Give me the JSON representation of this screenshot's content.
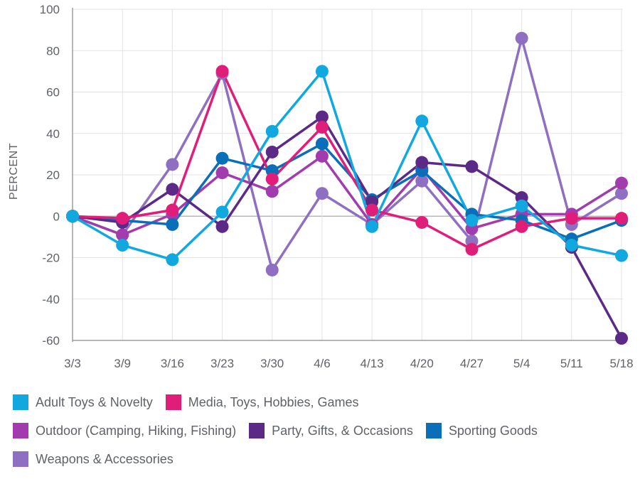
{
  "chart_data": {
    "type": "line",
    "title": "",
    "xlabel": "",
    "ylabel": "PERCENT",
    "ylim": [
      -60,
      100
    ],
    "yticks": [
      100,
      80,
      60,
      40,
      20,
      0,
      -20,
      -40,
      -60
    ],
    "grid": true,
    "legend_position": "bottom",
    "categories": [
      "3/3",
      "3/9",
      "3/16",
      "3/23",
      "3/30",
      "4/6",
      "4/13",
      "4/20",
      "4/27",
      "5/4",
      "5/11",
      "5/18"
    ],
    "series": [
      {
        "name": "Weapons & Accessories",
        "color": "#8E6FC1",
        "values": [
          0,
          -9,
          25,
          69,
          -26,
          11,
          -4,
          17,
          -12,
          86,
          -4,
          11
        ]
      },
      {
        "name": "Outdoor (Camping, Hiking, Fishing)",
        "color": "#A23CAE",
        "values": [
          0,
          -9,
          1,
          21,
          12,
          29,
          -4,
          23,
          -6,
          1,
          1,
          16
        ]
      },
      {
        "name": "Sporting Goods",
        "color": "#0A6FB8",
        "values": [
          0,
          -2,
          -4,
          28,
          22,
          35,
          8,
          22,
          1,
          -2,
          -11,
          -2
        ]
      },
      {
        "name": "Party, Gifts, & Occasions",
        "color": "#5B2A86",
        "values": [
          0,
          -3,
          13,
          -5,
          31,
          48,
          7,
          26,
          24,
          9,
          -15,
          -59
        ]
      },
      {
        "name": "Media, Toys, Hobbies, Games",
        "color": "#E11D7A",
        "values": [
          0,
          -1,
          3,
          70,
          18,
          43,
          3,
          -3,
          -16,
          -5,
          -1,
          -1
        ]
      },
      {
        "name": "Adult Toys & Novelty",
        "color": "#11A8E0",
        "values": [
          0,
          -14,
          -21,
          2,
          41,
          70,
          -5,
          46,
          -2,
          5,
          -14,
          -19
        ]
      }
    ]
  },
  "legend": {
    "rows": [
      [
        {
          "name": "Adult Toys & Novelty",
          "color": "#11A8E0"
        },
        {
          "name": "Media, Toys, Hobbies, Games",
          "color": "#E11D7A"
        }
      ],
      [
        {
          "name": "Outdoor (Camping, Hiking, Fishing)",
          "color": "#A23CAE"
        },
        {
          "name": "Party, Gifts, & Occasions",
          "color": "#5B2A86"
        },
        {
          "name": "Sporting Goods",
          "color": "#0A6FB8"
        }
      ],
      [
        {
          "name": "Weapons & Accessories",
          "color": "#8E6FC1"
        }
      ]
    ]
  }
}
